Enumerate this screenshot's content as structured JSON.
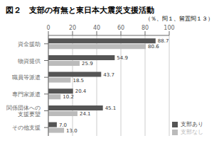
{
  "chart_data": {
    "type": "bar",
    "orientation": "horizontal",
    "title": "図２　支部の有無と東日本大震災支援活動",
    "subtitle": "（％、問１、留置問１３）",
    "categories": [
      "資金援助",
      "物資提供",
      "職員等派遣",
      "専門家派遣",
      "関係団体への\n支援要望",
      "その他支援"
    ],
    "series": [
      {
        "name": "支部あり",
        "color": "#555555",
        "values": [
          88.7,
          54.9,
          43.7,
          20.4,
          45.1,
          7.0
        ],
        "value_labels": [
          "88.7",
          "54.9",
          "43.7",
          "20.4",
          "45.1",
          "7.0"
        ]
      },
      {
        "name": "支部なし",
        "color": "#bbbbbb",
        "values": [
          80.6,
          25.9,
          18.5,
          10.2,
          24.1,
          13.0
        ],
        "value_labels": [
          "80.6",
          "25.9",
          "18.5",
          "10.2",
          "24.1",
          "13.0"
        ]
      }
    ],
    "xlim": [
      0,
      100
    ],
    "xticks": [
      0,
      20,
      40,
      60,
      80,
      100
    ],
    "grid": true,
    "legend": "lower right",
    "data_labels": true
  }
}
